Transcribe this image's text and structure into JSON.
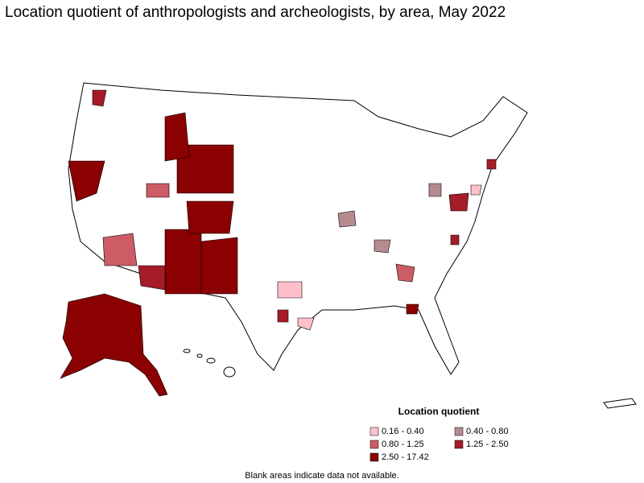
{
  "title": "Location quotient of anthropologists and archeologists, by area, May 2022",
  "legend": {
    "title": "Location quotient",
    "items": [
      {
        "label": "0.16 - 0.40",
        "color": "#ffc0cb"
      },
      {
        "label": "0.40 - 0.80",
        "color": "#b58b8f"
      },
      {
        "label": "0.80 - 1.25",
        "color": "#cd5c66"
      },
      {
        "label": "1.25 - 2.50",
        "color": "#a51c28"
      },
      {
        "label": "2.50 - 17.42",
        "color": "#8b0000"
      }
    ]
  },
  "note": "Blank areas indicate data not available."
}
